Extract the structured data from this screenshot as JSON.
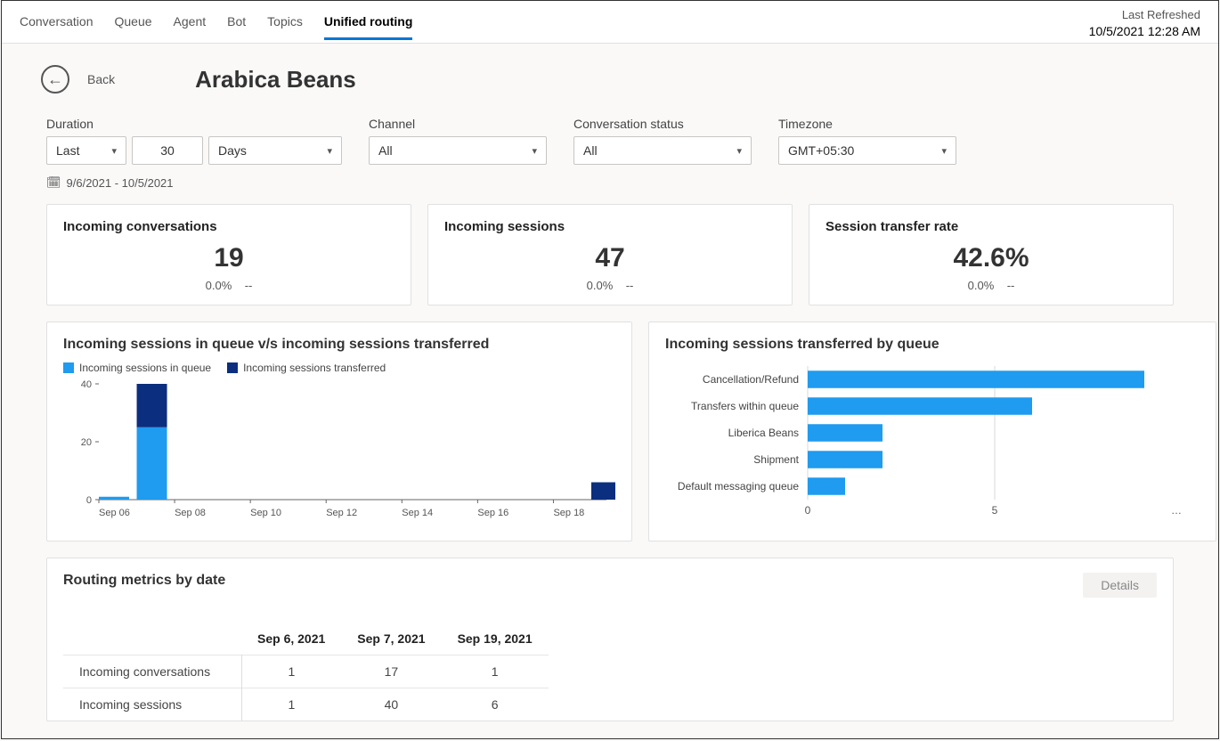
{
  "tabs": {
    "items": [
      "Conversation",
      "Queue",
      "Agent",
      "Bot",
      "Topics",
      "Unified routing"
    ],
    "active_index": 5
  },
  "refreshed": {
    "label": "Last Refreshed",
    "timestamp": "10/5/2021 12:28 AM"
  },
  "header": {
    "back_label": "Back",
    "title": "Arabica Beans"
  },
  "filters": {
    "duration": {
      "label": "Duration",
      "mode": "Last",
      "count": "30",
      "unit": "Days",
      "range_text": "9/6/2021 - 10/5/2021"
    },
    "channel": {
      "label": "Channel",
      "value": "All"
    },
    "conversation_status": {
      "label": "Conversation status",
      "value": "All"
    },
    "timezone": {
      "label": "Timezone",
      "value": "GMT+05:30"
    }
  },
  "kpis": [
    {
      "title": "Incoming conversations",
      "value": "19",
      "delta": "0.0%",
      "trend": "--"
    },
    {
      "title": "Incoming sessions",
      "value": "47",
      "delta": "0.0%",
      "trend": "--"
    },
    {
      "title": "Session transfer rate",
      "value": "42.6%",
      "delta": "0.0%",
      "trend": "--"
    }
  ],
  "chart_stacked": {
    "title": "Incoming sessions in queue v/s incoming sessions transferred",
    "legend": [
      {
        "label": "Incoming sessions in queue",
        "color": "#1f9bf0"
      },
      {
        "label": "Incoming sessions transferred",
        "color": "#0b2e7f"
      }
    ],
    "type": "stacked-bar",
    "y_ticks": [
      0,
      20,
      40
    ],
    "ylim": [
      0,
      40
    ],
    "x_labels": [
      "Sep 06",
      "Sep 08",
      "Sep 10",
      "Sep 12",
      "Sep 14",
      "Sep 16",
      "Sep 18"
    ],
    "x_positions": [
      0,
      1,
      2,
      3,
      4,
      5,
      6,
      6.7
    ],
    "bars": [
      {
        "x": 0,
        "in_queue": 1,
        "transferred": 0
      },
      {
        "x": 0.5,
        "in_queue": 25,
        "transferred": 15
      },
      {
        "x": 6.5,
        "in_queue": 0,
        "transferred": 6
      }
    ],
    "colors": {
      "in_queue": "#1f9bf0",
      "transferred": "#0b2e7f"
    },
    "grid_color": "#d9d9d9",
    "axis_color": "#666",
    "label_fontsize": 11
  },
  "chart_hbar": {
    "title": "Incoming sessions transferred by queue",
    "type": "horizontal-bar",
    "categories": [
      "Cancellation/Refund",
      "Transfers within queue",
      "Liberica Beans",
      "Shipment",
      "Default messaging queue"
    ],
    "values": [
      9,
      6,
      2,
      2,
      1
    ],
    "x_ticks": [
      0,
      5
    ],
    "xlim": [
      0,
      10
    ],
    "bar_color": "#1f9bf0",
    "grid_color": "#d9d9d9",
    "axis_color": "#666",
    "label_fontsize": 12,
    "ellipsis": "…"
  },
  "metrics_table": {
    "title": "Routing metrics by date",
    "details_label": "Details",
    "columns": [
      "Sep 6, 2021",
      "Sep 7, 2021",
      "Sep 19, 2021"
    ],
    "rows": [
      {
        "label": "Incoming conversations",
        "cells": [
          "1",
          "17",
          "1"
        ]
      },
      {
        "label": "Incoming sessions",
        "cells": [
          "1",
          "40",
          "6"
        ]
      }
    ]
  }
}
